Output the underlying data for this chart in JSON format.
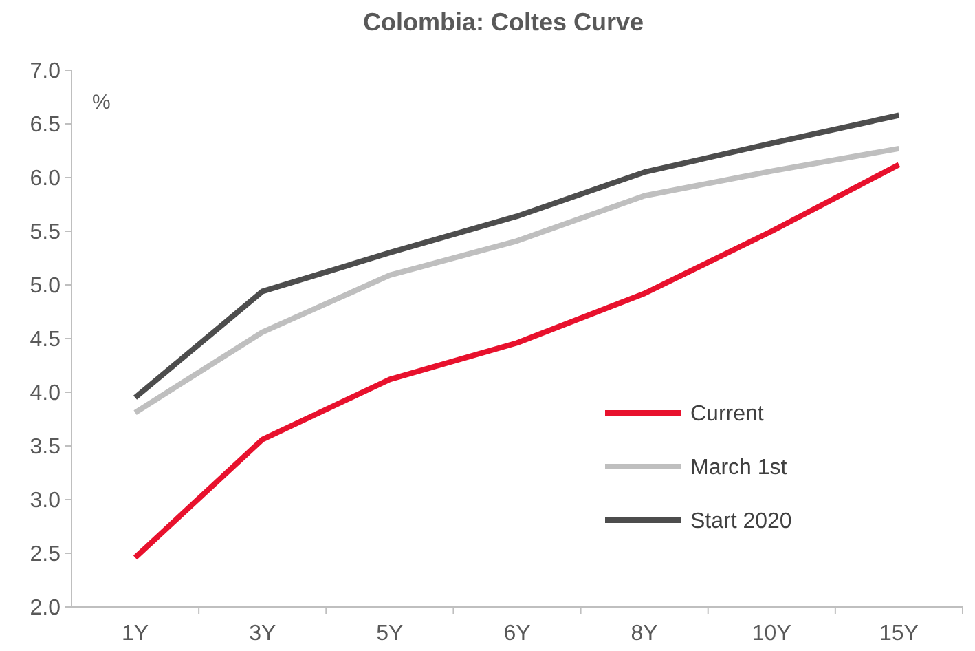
{
  "chart_data": {
    "type": "line",
    "title": "Colombia: Coltes Curve",
    "ylabel": "%",
    "categories": [
      "1Y",
      "3Y",
      "5Y",
      "6Y",
      "8Y",
      "10Y",
      "15Y"
    ],
    "series": [
      {
        "name": "Current",
        "color": "#e8112d",
        "values": [
          2.46,
          3.56,
          4.12,
          4.46,
          4.92,
          5.5,
          6.12
        ]
      },
      {
        "name": "March 1st",
        "color": "#bfbfbf",
        "values": [
          3.81,
          4.56,
          5.09,
          5.41,
          5.83,
          6.06,
          6.27
        ]
      },
      {
        "name": "Start 2020",
        "color": "#4d4d4d",
        "values": [
          3.95,
          4.94,
          5.3,
          5.64,
          6.05,
          6.32,
          6.58
        ]
      }
    ],
    "ylim": [
      2,
      7
    ],
    "yticks": [
      {
        "value": 2,
        "label": "2.0"
      },
      {
        "value": 2.5,
        "label": "2.5"
      },
      {
        "value": 3,
        "label": "3.0"
      },
      {
        "value": 3.5,
        "label": "3.5"
      },
      {
        "value": 4,
        "label": "4.0"
      },
      {
        "value": 4.5,
        "label": "4.5"
      },
      {
        "value": 5,
        "label": "5.0"
      },
      {
        "value": 5.5,
        "label": "5.5"
      },
      {
        "value": 6,
        "label": "6.0"
      },
      {
        "value": 6.5,
        "label": "6.5"
      },
      {
        "value": 7,
        "label": "7.0"
      }
    ],
    "grid": false,
    "legend": "bottom right",
    "marker": "none",
    "line_style": "solid"
  }
}
